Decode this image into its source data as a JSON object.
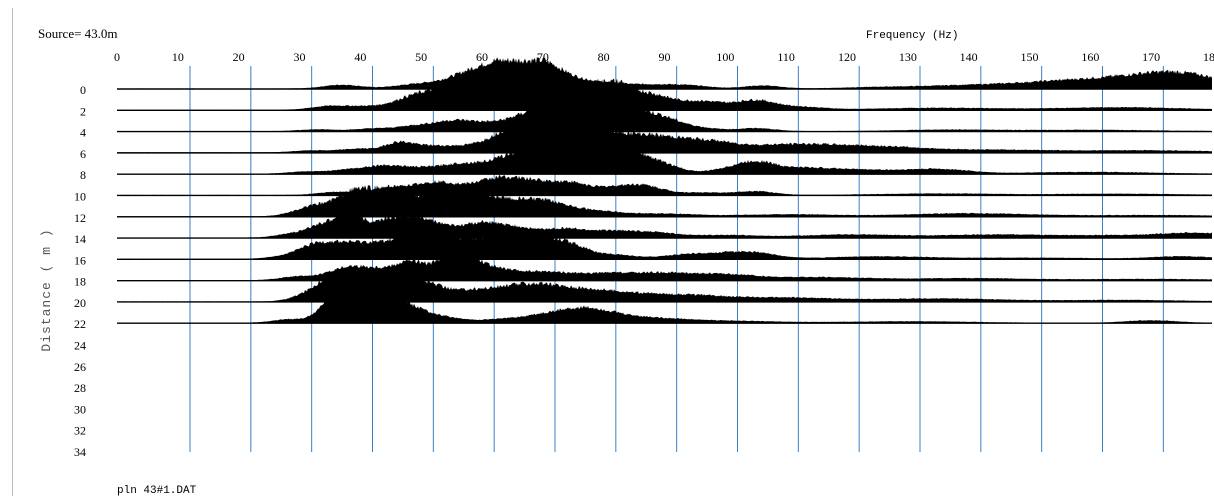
{
  "header": {
    "source_label": "Source= 43.0m",
    "footer_file": "pln 43#1.DAT"
  },
  "chart_data": {
    "type": "area",
    "title": "Source= 43.0m",
    "xlabel": "Frequency (Hz)",
    "ylabel": "Distance ( m )",
    "xlim": [
      0,
      180
    ],
    "x_ticks": [
      0,
      10,
      20,
      30,
      40,
      50,
      60,
      70,
      80,
      90,
      100,
      110,
      120,
      130,
      140,
      150,
      160,
      170,
      180
    ],
    "y_ticks": [
      0,
      2,
      4,
      6,
      8,
      10,
      12,
      14,
      16,
      18,
      20,
      22,
      24,
      26,
      28,
      30,
      32,
      34
    ],
    "gridlines_x": [
      12,
      22,
      32,
      42,
      52,
      62,
      72,
      82,
      92,
      102,
      112,
      122,
      132,
      142,
      152,
      162,
      172
    ],
    "fill_color": "#000000",
    "grid_color": "#3a7fc4",
    "traces": [
      {
        "distance": 0,
        "peaks": [
          [
            37,
            0.15,
            3
          ],
          [
            50,
            0.18,
            4
          ],
          [
            57,
            0.2,
            3
          ],
          [
            62,
            0.55,
            5
          ],
          [
            67,
            0.8,
            5
          ],
          [
            71,
            0.35,
            4
          ],
          [
            80,
            0.2,
            4
          ],
          [
            89,
            0.15,
            4
          ],
          [
            95,
            0.08,
            3
          ],
          [
            106,
            0.12,
            3
          ],
          [
            125,
            0.05,
            6
          ],
          [
            140,
            0.12,
            8
          ],
          [
            155,
            0.2,
            8
          ],
          [
            165,
            0.25,
            8
          ],
          [
            172,
            0.3,
            6
          ],
          [
            178,
            0.3,
            6
          ]
        ]
      },
      {
        "distance": 2,
        "peaks": [
          [
            35,
            0.15,
            3
          ],
          [
            41,
            0.12,
            3
          ],
          [
            48,
            0.35,
            3
          ],
          [
            54,
            0.6,
            4
          ],
          [
            59,
            0.8,
            4
          ],
          [
            64,
            0.55,
            3
          ],
          [
            70,
            0.7,
            4
          ],
          [
            78,
            0.9,
            4
          ],
          [
            82,
            0.6,
            3
          ],
          [
            88,
            0.5,
            3
          ],
          [
            96,
            0.35,
            4
          ],
          [
            105,
            0.35,
            3
          ],
          [
            112,
            0.12,
            4
          ],
          [
            135,
            0.08,
            10
          ],
          [
            165,
            0.1,
            10
          ]
        ]
      },
      {
        "distance": 4,
        "peaks": [
          [
            33,
            0.07,
            3
          ],
          [
            42,
            0.1,
            3
          ],
          [
            49,
            0.2,
            3
          ],
          [
            55,
            0.35,
            3
          ],
          [
            60,
            0.25,
            3
          ],
          [
            66,
            0.4,
            3
          ],
          [
            71,
            0.55,
            3
          ],
          [
            77,
            0.95,
            5
          ],
          [
            83,
            0.75,
            4
          ],
          [
            90,
            0.4,
            3
          ],
          [
            96,
            0.12,
            3
          ],
          [
            105,
            0.12,
            3
          ],
          [
            137,
            0.06,
            8
          ],
          [
            160,
            0.05,
            10
          ]
        ]
      },
      {
        "distance": 6,
        "peaks": [
          [
            32,
            0.08,
            3
          ],
          [
            40,
            0.15,
            3
          ],
          [
            46,
            0.3,
            2
          ],
          [
            50,
            0.25,
            3
          ],
          [
            56,
            0.2,
            3
          ],
          [
            62,
            0.3,
            3
          ],
          [
            66,
            0.45,
            3
          ],
          [
            71,
            0.95,
            5
          ],
          [
            77,
            0.7,
            4
          ],
          [
            84,
            0.35,
            4
          ],
          [
            90,
            0.5,
            5
          ],
          [
            98,
            0.25,
            4
          ],
          [
            110,
            0.3,
            8
          ],
          [
            125,
            0.2,
            8
          ],
          [
            145,
            0.1,
            10
          ],
          [
            170,
            0.08,
            10
          ]
        ]
      },
      {
        "distance": 8,
        "peaks": [
          [
            31,
            0.08,
            3
          ],
          [
            38,
            0.15,
            3
          ],
          [
            44,
            0.3,
            3
          ],
          [
            50,
            0.2,
            3
          ],
          [
            56,
            0.3,
            3
          ],
          [
            63,
            0.4,
            4
          ],
          [
            69,
            0.75,
            4
          ],
          [
            76,
            0.6,
            4
          ],
          [
            83,
            0.95,
            4
          ],
          [
            90,
            0.25,
            3
          ],
          [
            100,
            0.15,
            3
          ],
          [
            105,
            0.4,
            3
          ],
          [
            112,
            0.2,
            5
          ],
          [
            122,
            0.15,
            6
          ],
          [
            135,
            0.18,
            5
          ],
          [
            160,
            0.07,
            10
          ]
        ]
      },
      {
        "distance": 10,
        "peaks": [
          [
            36,
            0.12,
            3
          ],
          [
            44,
            0.2,
            3
          ],
          [
            48,
            0.2,
            3
          ],
          [
            53,
            0.45,
            3
          ],
          [
            59,
            0.25,
            3
          ],
          [
            63,
            0.5,
            3
          ],
          [
            68,
            0.45,
            3
          ],
          [
            74,
            0.45,
            3
          ],
          [
            82,
            0.3,
            4
          ],
          [
            87,
            0.25,
            3
          ],
          [
            96,
            0.1,
            4
          ],
          [
            105,
            0.15,
            3
          ],
          [
            135,
            0.06,
            10
          ],
          [
            165,
            0.05,
            10
          ]
        ]
      },
      {
        "distance": 12,
        "peaks": [
          [
            32,
            0.35,
            3
          ],
          [
            38,
            0.6,
            3
          ],
          [
            42,
            0.8,
            3
          ],
          [
            45,
            0.95,
            2
          ],
          [
            50,
            0.6,
            3
          ],
          [
            55,
            0.75,
            3
          ],
          [
            60,
            0.55,
            3
          ],
          [
            66,
            0.5,
            4
          ],
          [
            72,
            0.4,
            4
          ],
          [
            80,
            0.15,
            4
          ],
          [
            90,
            0.1,
            5
          ],
          [
            110,
            0.08,
            8
          ],
          [
            140,
            0.12,
            10
          ],
          [
            170,
            0.05,
            10
          ]
        ]
      },
      {
        "distance": 14,
        "peaks": [
          [
            30,
            0.2,
            3
          ],
          [
            34,
            0.45,
            2
          ],
          [
            38,
            0.95,
            1.8
          ],
          [
            43,
            0.5,
            3
          ],
          [
            48,
            0.65,
            3
          ],
          [
            53,
            0.4,
            3
          ],
          [
            60,
            0.55,
            3
          ],
          [
            66,
            0.35,
            3
          ],
          [
            73,
            0.3,
            3
          ],
          [
            80,
            0.25,
            4
          ],
          [
            88,
            0.2,
            4
          ],
          [
            100,
            0.1,
            5
          ],
          [
            120,
            0.12,
            8
          ],
          [
            145,
            0.12,
            10
          ],
          [
            170,
            0.1,
            10
          ],
          [
            178,
            0.12,
            5
          ]
        ]
      },
      {
        "distance": 16,
        "peaks": [
          [
            28,
            0.1,
            3
          ],
          [
            33,
            0.5,
            3
          ],
          [
            37,
            0.3,
            3
          ],
          [
            41,
            0.45,
            3
          ],
          [
            47,
            0.7,
            3
          ],
          [
            51,
            0.6,
            2
          ],
          [
            56,
            0.8,
            4
          ],
          [
            63,
            0.55,
            3
          ],
          [
            69,
            0.85,
            4
          ],
          [
            75,
            0.35,
            3
          ],
          [
            82,
            0.15,
            3
          ],
          [
            95,
            0.2,
            5
          ],
          [
            104,
            0.25,
            4
          ],
          [
            125,
            0.1,
            8
          ],
          [
            150,
            0.05,
            10
          ],
          [
            175,
            0.1,
            5
          ]
        ]
      },
      {
        "distance": 18,
        "peaks": [
          [
            30,
            0.15,
            3
          ],
          [
            38,
            0.5,
            3
          ],
          [
            44,
            0.4,
            3
          ],
          [
            48,
            0.45,
            2
          ],
          [
            52,
            0.4,
            3
          ],
          [
            57,
            0.95,
            3
          ],
          [
            63,
            0.3,
            3
          ],
          [
            70,
            0.3,
            4
          ],
          [
            80,
            0.25,
            5
          ],
          [
            90,
            0.25,
            5
          ],
          [
            100,
            0.2,
            5
          ],
          [
            115,
            0.12,
            8
          ],
          [
            140,
            0.08,
            10
          ],
          [
            170,
            0.05,
            10
          ]
        ]
      },
      {
        "distance": 20,
        "peaks": [
          [
            33,
            0.45,
            3
          ],
          [
            37,
            0.95,
            2.5
          ],
          [
            41,
            0.9,
            3
          ],
          [
            45,
            0.8,
            3
          ],
          [
            49,
            0.65,
            3
          ],
          [
            53,
            0.2,
            2
          ],
          [
            57,
            0.3,
            3
          ],
          [
            63,
            0.4,
            4
          ],
          [
            69,
            0.45,
            4
          ],
          [
            76,
            0.35,
            5
          ],
          [
            84,
            0.25,
            6
          ],
          [
            95,
            0.2,
            6
          ],
          [
            110,
            0.15,
            8
          ],
          [
            135,
            0.12,
            10
          ],
          [
            165,
            0.06,
            10
          ]
        ]
      },
      {
        "distance": 22,
        "peaks": [
          [
            29,
            0.15,
            3
          ],
          [
            35,
            0.55,
            2
          ],
          [
            38,
            0.95,
            2.5
          ],
          [
            41,
            0.9,
            3
          ],
          [
            44,
            0.85,
            3
          ],
          [
            49,
            0.4,
            3
          ],
          [
            54,
            0.15,
            3
          ],
          [
            62,
            0.1,
            4
          ],
          [
            72,
            0.35,
            5
          ],
          [
            78,
            0.35,
            4
          ],
          [
            86,
            0.2,
            6
          ],
          [
            100,
            0.08,
            8
          ],
          [
            130,
            0.06,
            10
          ],
          [
            170,
            0.1,
            4
          ]
        ]
      }
    ]
  }
}
